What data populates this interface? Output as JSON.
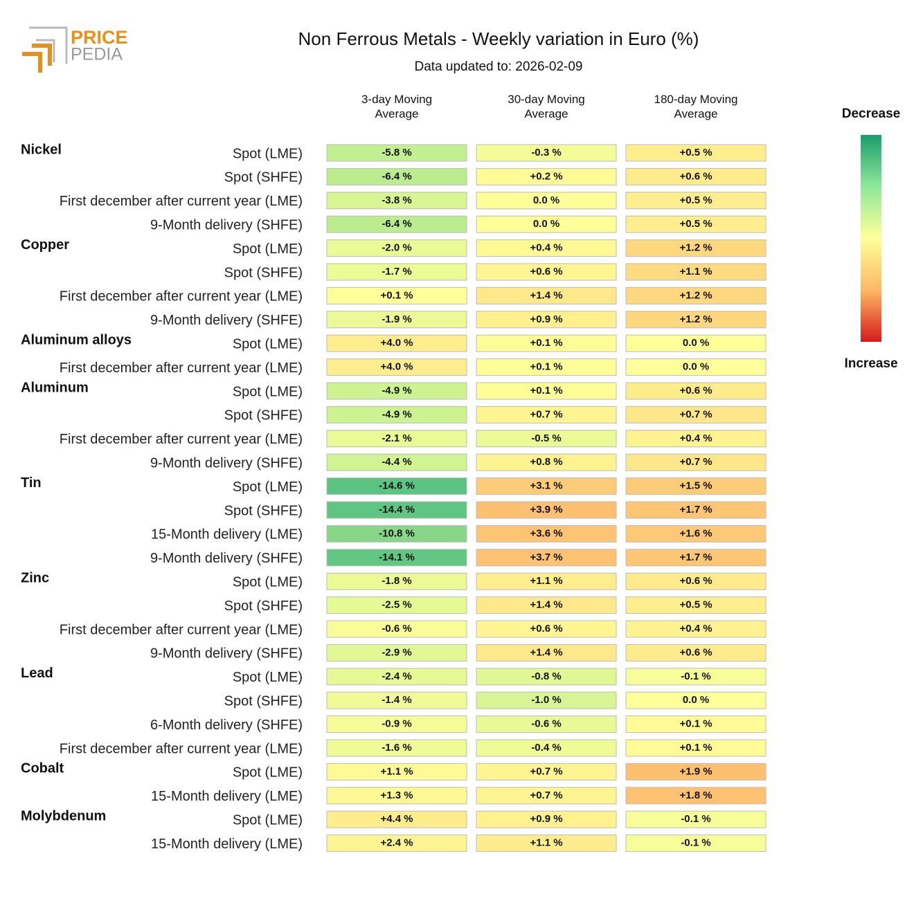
{
  "logo": {
    "top": "PRICE",
    "bottom": "PEDIA"
  },
  "chart_data": {
    "type": "heatmap",
    "title": "Non Ferrous Metals - Weekly variation in Euro (%)",
    "subtitle": "Data updated to: 2026-02-09",
    "legend": {
      "top": "Decrease",
      "bottom": "Increase"
    },
    "groups": [
      {
        "name": "Nickel",
        "rows": [
          "Spot (LME)",
          "Spot (SHFE)",
          "First december after current year (LME)",
          "9-Month delivery (SHFE)"
        ]
      },
      {
        "name": "Copper",
        "rows": [
          "Spot (LME)",
          "Spot (SHFE)",
          "First december after current year (LME)",
          "9-Month delivery (SHFE)"
        ]
      },
      {
        "name": "Aluminum alloys",
        "rows": [
          "Spot (LME)",
          "First december after current year (LME)"
        ]
      },
      {
        "name": "Aluminum",
        "rows": [
          "Spot (LME)",
          "Spot (SHFE)",
          "First december after current year (LME)",
          "9-Month delivery (SHFE)"
        ]
      },
      {
        "name": "Tin",
        "rows": [
          "Spot (LME)",
          "Spot (SHFE)",
          "15-Month delivery (LME)",
          "9-Month delivery (SHFE)"
        ]
      },
      {
        "name": "Zinc",
        "rows": [
          "Spot (LME)",
          "Spot (SHFE)",
          "First december after current year (LME)",
          "9-Month delivery (SHFE)"
        ]
      },
      {
        "name": "Lead",
        "rows": [
          "Spot (LME)",
          "Spot (SHFE)",
          "6-Month delivery (SHFE)",
          "First december after current year (LME)"
        ]
      },
      {
        "name": "Cobalt",
        "rows": [
          "Spot (LME)",
          "15-Month delivery (LME)"
        ]
      },
      {
        "name": "Molybdenum",
        "rows": [
          "Spot (LME)",
          "15-Month delivery (LME)"
        ]
      }
    ],
    "series": [
      {
        "name": "3-day Moving Average",
        "values": [
          -5.8,
          -6.4,
          -3.8,
          -6.4,
          -2.0,
          -1.7,
          0.1,
          -1.9,
          4.0,
          4.0,
          -4.9,
          -4.9,
          -2.1,
          -4.4,
          -14.6,
          -14.4,
          -10.8,
          -14.1,
          -1.8,
          -2.5,
          -0.6,
          -2.9,
          -2.4,
          -1.4,
          -0.9,
          -1.6,
          1.1,
          1.3,
          4.4,
          2.4
        ],
        "value_labels": [
          "-5.8 %",
          "-6.4 %",
          "-3.8 %",
          "-6.4 %",
          "-2.0 %",
          "-1.7 %",
          "+0.1 %",
          "-1.9 %",
          "+4.0 %",
          "+4.0 %",
          "-4.9 %",
          "-4.9 %",
          "-2.1 %",
          "-4.4 %",
          "-14.6 %",
          "-14.4 %",
          "-10.8 %",
          "-14.1 %",
          "-1.8 %",
          "-2.5 %",
          "-0.6 %",
          "-2.9 %",
          "-2.4 %",
          "-1.4 %",
          "-0.9 %",
          "-1.6 %",
          "+1.1 %",
          "+1.3 %",
          "+4.4 %",
          "+2.4 %"
        ]
      },
      {
        "name": "30-day Moving Average",
        "values": [
          -0.3,
          0.2,
          0.0,
          0.0,
          0.4,
          0.6,
          1.4,
          0.9,
          0.1,
          0.1,
          0.1,
          0.7,
          -0.5,
          0.8,
          3.1,
          3.9,
          3.6,
          3.7,
          1.1,
          1.4,
          0.6,
          1.4,
          -0.8,
          -1.0,
          -0.6,
          -0.4,
          0.7,
          0.7,
          0.9,
          1.1
        ],
        "value_labels": [
          "-0.3 %",
          "+0.2 %",
          "0.0 %",
          "0.0 %",
          "+0.4 %",
          "+0.6 %",
          "+1.4 %",
          "+0.9 %",
          "+0.1 %",
          "+0.1 %",
          "+0.1 %",
          "+0.7 %",
          "-0.5 %",
          "+0.8 %",
          "+3.1 %",
          "+3.9 %",
          "+3.6 %",
          "+3.7 %",
          "+1.1 %",
          "+1.4 %",
          "+0.6 %",
          "+1.4 %",
          "-0.8 %",
          "-1.0 %",
          "-0.6 %",
          "-0.4 %",
          "+0.7 %",
          "+0.7 %",
          "+0.9 %",
          "+1.1 %"
        ]
      },
      {
        "name": "180-day Moving Average",
        "values": [
          0.5,
          0.6,
          0.5,
          0.5,
          1.2,
          1.1,
          1.2,
          1.2,
          0.0,
          0.0,
          0.6,
          0.7,
          0.4,
          0.7,
          1.5,
          1.7,
          1.6,
          1.7,
          0.6,
          0.5,
          0.4,
          0.6,
          -0.1,
          0.0,
          0.1,
          0.1,
          1.9,
          1.8,
          -0.1,
          -0.1
        ],
        "value_labels": [
          "+0.5 %",
          "+0.6 %",
          "+0.5 %",
          "+0.5 %",
          "+1.2 %",
          "+1.1 %",
          "+1.2 %",
          "+1.2 %",
          "0.0 %",
          "0.0 %",
          "+0.6 %",
          "+0.7 %",
          "+0.4 %",
          "+0.7 %",
          "+1.5 %",
          "+1.7 %",
          "+1.6 %",
          "+1.7 %",
          "+0.6 %",
          "+0.5 %",
          "+0.4 %",
          "+0.6 %",
          "-0.1 %",
          "0.0 %",
          "+0.1 %",
          "+0.1 %",
          "+1.9 %",
          "+1.8 %",
          "-0.1 %",
          "-0.1 %"
        ]
      }
    ]
  }
}
